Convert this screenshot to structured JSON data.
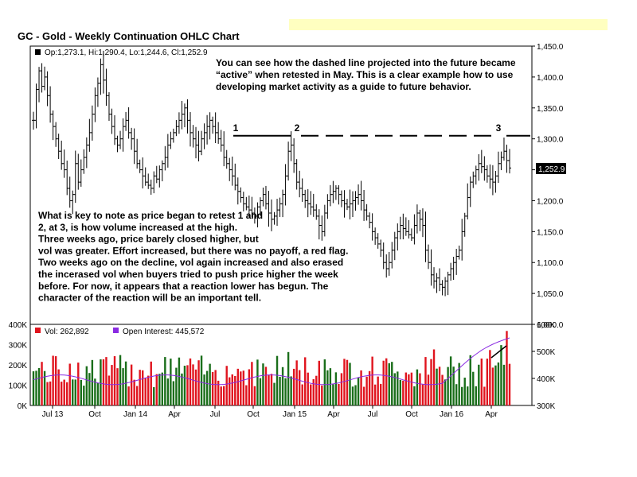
{
  "chart_data": {
    "type": "ohlc",
    "title": "GC - Gold - Weekly Continuation OHLC Chart",
    "legend_price": "Op:1,273.1, Hi:1,290.4, Lo:1,244.6, Cl:1,252.9",
    "last_price_label": "1,252.9",
    "last_close": 1252.9,
    "price_axis": {
      "ylim": [
        1000,
        1450
      ],
      "ticks": [
        "1,000.0",
        "1,050.0",
        "1,100.0",
        "1,150.0",
        "1,200.0",
        "1,250.0",
        "1,300.0",
        "1,350.0",
        "1,400.0",
        "1,450.0"
      ],
      "values": [
        1000,
        1050,
        1100,
        1150,
        1200,
        1250,
        1300,
        1350,
        1400,
        1450
      ]
    },
    "x_ticks": [
      "Jul 13",
      "Oct",
      "Jan 14",
      "Apr",
      "Jul",
      "Oct",
      "Jan 15",
      "Apr",
      "Jul",
      "Oct",
      "Jan 16",
      "Apr"
    ],
    "weekly_close": [
      1330,
      1380,
      1410,
      1385,
      1400,
      1370,
      1340,
      1320,
      1300,
      1280,
      1260,
      1250,
      1220,
      1200,
      1210,
      1260,
      1230,
      1250,
      1270,
      1290,
      1310,
      1340,
      1370,
      1390,
      1420,
      1395,
      1370,
      1340,
      1320,
      1300,
      1290,
      1300,
      1320,
      1330,
      1310,
      1300,
      1280,
      1260,
      1250,
      1240,
      1230,
      1225,
      1220,
      1240,
      1235,
      1250,
      1260,
      1270,
      1290,
      1300,
      1310,
      1320,
      1330,
      1340,
      1350,
      1330,
      1310,
      1300,
      1290,
      1280,
      1300,
      1310,
      1320,
      1330,
      1320,
      1310,
      1300,
      1290,
      1270,
      1260,
      1250,
      1240,
      1225,
      1215,
      1205,
      1195,
      1190,
      1185,
      1180,
      1175,
      1190,
      1200,
      1210,
      1195,
      1180,
      1170,
      1175,
      1185,
      1195,
      1210,
      1240,
      1280,
      1290,
      1260,
      1230,
      1220,
      1210,
      1200,
      1195,
      1190,
      1185,
      1175,
      1160,
      1150,
      1180,
      1200,
      1210,
      1215,
      1220,
      1210,
      1200,
      1195,
      1190,
      1195,
      1200,
      1205,
      1210,
      1200,
      1185,
      1175,
      1165,
      1150,
      1140,
      1130,
      1120,
      1100,
      1090,
      1100,
      1120,
      1140,
      1150,
      1160,
      1155,
      1150,
      1145,
      1140,
      1160,
      1180,
      1170,
      1160,
      1120,
      1100,
      1080,
      1070,
      1075,
      1065,
      1060,
      1070,
      1080,
      1090,
      1100,
      1110,
      1120,
      1150,
      1175,
      1205,
      1230,
      1240,
      1250,
      1260,
      1255,
      1250,
      1240,
      1235,
      1230,
      1240,
      1260,
      1270,
      1280,
      1265,
      1252.9
    ],
    "resistance_level": 1305,
    "resistance_marks": [
      "1",
      "2",
      "3"
    ],
    "annotation_top": [
      "You can see how the dashed line projected into the future became",
      "“active” when retested in May.  This is a clear example how to use",
      "developing market activity as a guide to future behavior."
    ],
    "annotation_bottom": [
      "What is key to note as price began to retest 1 and",
      "2, at 3, is how volume increased at the high.",
      "Three weeks ago, price barely closed higher, but",
      "vol was greater.  Effort increased, but there was no payoff, a red flag.",
      "Two weeks ago on the decline, vol again increased and also erased",
      "the incerased vol when buyers tried to push price higher the week",
      "before.  For now, it appears that a reaction lower has begun.  The",
      "character of the reaction will be an important tell."
    ],
    "volume_panel": {
      "legend_vol": "Vol: 262,892",
      "legend_oi": "Open Interest: 445,572",
      "left_ticks": [
        "0K",
        "100K",
        "200K",
        "300K",
        "400K"
      ],
      "left_values": [
        0,
        100000,
        200000,
        300000,
        400000
      ],
      "right_ticks": [
        "300K",
        "400K",
        "500K",
        "600K"
      ],
      "right_values": [
        300000,
        400000,
        500000,
        600000
      ],
      "colors": {
        "up": "#1a6e1a",
        "down": "#e0141e",
        "oi": "#8a2be2",
        "avg": "#c0189c"
      }
    }
  }
}
